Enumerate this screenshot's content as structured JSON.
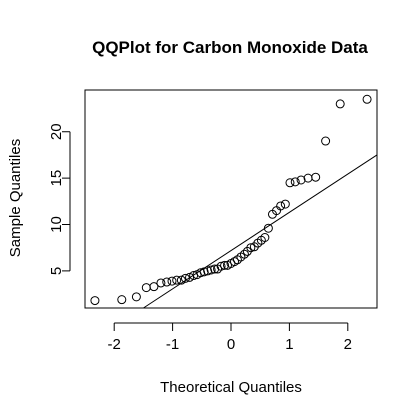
{
  "chart_data": {
    "type": "scatter",
    "title": "QQPlot for Carbon Monoxide Data",
    "xlabel": "Theoretical Quantiles",
    "ylabel": "Sample Quantiles",
    "xlim": [
      -2.5,
      2.5
    ],
    "ylim": [
      1.0,
      24.5
    ],
    "x_ticks": [
      -2,
      -1,
      0,
      1,
      2
    ],
    "x_tick_labels": [
      "-2",
      "-1",
      "0",
      "1",
      "2"
    ],
    "y_ticks": [
      5,
      10,
      15,
      20
    ],
    "y_tick_labels": [
      "5",
      "10",
      "15",
      "20"
    ],
    "grid": false,
    "legend": "none",
    "reference_line": {
      "points": [
        {
          "x": -1.5,
          "y": 1.0
        },
        {
          "x": 2.5,
          "y": 17.5
        }
      ]
    },
    "points": [
      {
        "x": -2.33,
        "y": 1.8
      },
      {
        "x": -1.87,
        "y": 1.9
      },
      {
        "x": -1.62,
        "y": 2.2
      },
      {
        "x": -1.45,
        "y": 3.2
      },
      {
        "x": -1.32,
        "y": 3.3
      },
      {
        "x": -1.2,
        "y": 3.7
      },
      {
        "x": -1.1,
        "y": 3.8
      },
      {
        "x": -1.01,
        "y": 3.9
      },
      {
        "x": -0.93,
        "y": 4.0
      },
      {
        "x": -0.85,
        "y": 4.0
      },
      {
        "x": -0.78,
        "y": 4.2
      },
      {
        "x": -0.71,
        "y": 4.3
      },
      {
        "x": -0.64,
        "y": 4.5
      },
      {
        "x": -0.58,
        "y": 4.6
      },
      {
        "x": -0.52,
        "y": 4.8
      },
      {
        "x": -0.46,
        "y": 4.9
      },
      {
        "x": -0.4,
        "y": 5.0
      },
      {
        "x": -0.34,
        "y": 5.1
      },
      {
        "x": -0.28,
        "y": 5.2
      },
      {
        "x": -0.23,
        "y": 5.2
      },
      {
        "x": -0.17,
        "y": 5.5
      },
      {
        "x": -0.11,
        "y": 5.6
      },
      {
        "x": -0.06,
        "y": 5.6
      },
      {
        "x": 0.0,
        "y": 5.8
      },
      {
        "x": 0.06,
        "y": 6.0
      },
      {
        "x": 0.11,
        "y": 6.2
      },
      {
        "x": 0.17,
        "y": 6.5
      },
      {
        "x": 0.23,
        "y": 6.8
      },
      {
        "x": 0.28,
        "y": 7.1
      },
      {
        "x": 0.34,
        "y": 7.5
      },
      {
        "x": 0.4,
        "y": 7.6
      },
      {
        "x": 0.46,
        "y": 8.0
      },
      {
        "x": 0.52,
        "y": 8.3
      },
      {
        "x": 0.58,
        "y": 8.6
      },
      {
        "x": 0.64,
        "y": 9.6
      },
      {
        "x": 0.71,
        "y": 11.1
      },
      {
        "x": 0.78,
        "y": 11.5
      },
      {
        "x": 0.85,
        "y": 12.0
      },
      {
        "x": 0.93,
        "y": 12.2
      },
      {
        "x": 1.01,
        "y": 14.5
      },
      {
        "x": 1.1,
        "y": 14.6
      },
      {
        "x": 1.2,
        "y": 14.8
      },
      {
        "x": 1.32,
        "y": 15.0
      },
      {
        "x": 1.45,
        "y": 15.1
      },
      {
        "x": 1.62,
        "y": 19.0
      },
      {
        "x": 1.87,
        "y": 23.0
      },
      {
        "x": 2.33,
        "y": 23.5
      }
    ]
  }
}
